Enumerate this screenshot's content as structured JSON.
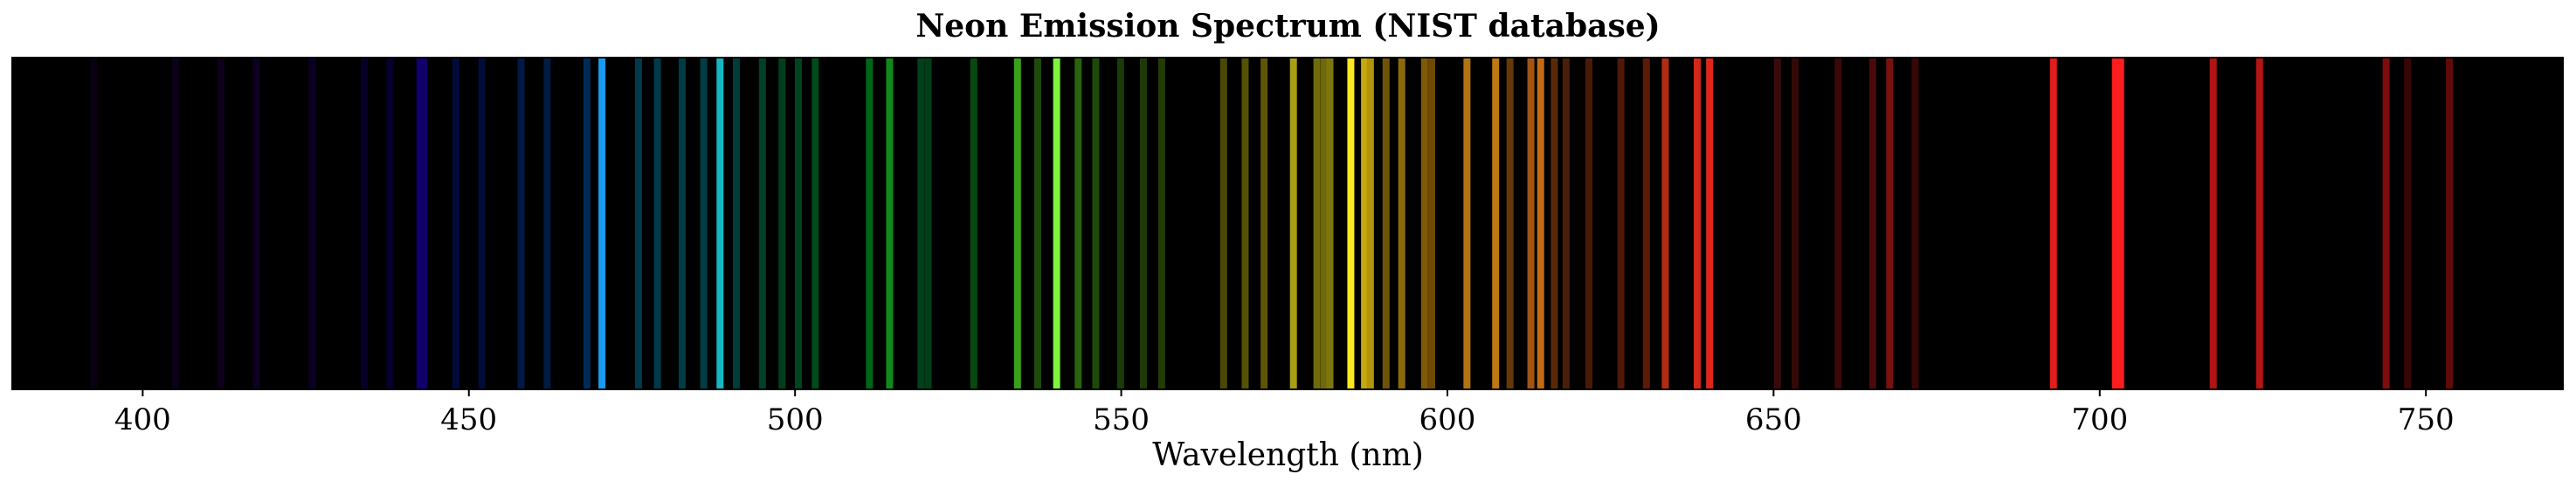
{
  "chart_data": {
    "type": "spectrum",
    "title": "Neon Emission Spectrum (NIST database)",
    "xlabel": "Wavelength (nm)",
    "ylabel": "",
    "xlim": [
      380,
      771
    ],
    "xticks": [
      400,
      450,
      500,
      550,
      600,
      650,
      700,
      750
    ],
    "grid": false,
    "legend": "none",
    "background_color": "#000000",
    "lines": [
      {
        "wavelength": 392.5,
        "color": "#0a0012"
      },
      {
        "wavelength": 405.0,
        "color": "#0b0017"
      },
      {
        "wavelength": 412.0,
        "color": "#0c001b"
      },
      {
        "wavelength": 417.4,
        "color": "#0d0020"
      },
      {
        "wavelength": 426.0,
        "color": "#0a0026"
      },
      {
        "wavelength": 434.0,
        "color": "#060029"
      },
      {
        "wavelength": 437.9,
        "color": "#05002d"
      },
      {
        "wavelength": 442.5,
        "color": "#120070"
      },
      {
        "wavelength": 443.1,
        "color": "#10006a"
      },
      {
        "wavelength": 448.0,
        "color": "#000c38"
      },
      {
        "wavelength": 452.0,
        "color": "#000c3a"
      },
      {
        "wavelength": 458.0,
        "color": "#001a45"
      },
      {
        "wavelength": 462.0,
        "color": "#001c45"
      },
      {
        "wavelength": 468.1,
        "color": "#002a55"
      },
      {
        "wavelength": 470.4,
        "color": "#1a9bef"
      },
      {
        "wavelength": 476.0,
        "color": "#003a4c"
      },
      {
        "wavelength": 478.9,
        "color": "#00394a"
      },
      {
        "wavelength": 482.7,
        "color": "#003c46"
      },
      {
        "wavelength": 486.0,
        "color": "#003e44"
      },
      {
        "wavelength": 488.5,
        "color": "#15b8c2"
      },
      {
        "wavelength": 491.0,
        "color": "#003c38"
      },
      {
        "wavelength": 495.0,
        "color": "#00402a"
      },
      {
        "wavelength": 498.0,
        "color": "#003e1e"
      },
      {
        "wavelength": 500.5,
        "color": "#00441f"
      },
      {
        "wavelength": 503.1,
        "color": "#004a1c"
      },
      {
        "wavelength": 511.4,
        "color": "#00661a"
      },
      {
        "wavelength": 514.5,
        "color": "#0f8a1a"
      },
      {
        "wavelength": 519.3,
        "color": "#00401a"
      },
      {
        "wavelength": 520.4,
        "color": "#003e18"
      },
      {
        "wavelength": 527.4,
        "color": "#064a12"
      },
      {
        "wavelength": 534.1,
        "color": "#38a21a"
      },
      {
        "wavelength": 537.2,
        "color": "#204a0a"
      },
      {
        "wavelength": 540.1,
        "color": "#7ef43e"
      },
      {
        "wavelength": 543.4,
        "color": "#28640e"
      },
      {
        "wavelength": 546.1,
        "color": "#1d4a0a"
      },
      {
        "wavelength": 549.9,
        "color": "#1a3c08"
      },
      {
        "wavelength": 553.4,
        "color": "#1f3a08"
      },
      {
        "wavelength": 556.2,
        "color": "#263c06"
      },
      {
        "wavelength": 565.7,
        "color": "#4a4806"
      },
      {
        "wavelength": 569.0,
        "color": "#555206"
      },
      {
        "wavelength": 571.9,
        "color": "#5e5506"
      },
      {
        "wavelength": 576.4,
        "color": "#a8a014"
      },
      {
        "wavelength": 580.0,
        "color": "#6e6b0a"
      },
      {
        "wavelength": 581.1,
        "color": "#6e690a"
      },
      {
        "wavelength": 582.0,
        "color": "#7d760c"
      },
      {
        "wavelength": 585.2,
        "color": "#ffe81c"
      },
      {
        "wavelength": 587.3,
        "color": "#c8a810"
      },
      {
        "wavelength": 588.2,
        "color": "#b0940c"
      },
      {
        "wavelength": 590.6,
        "color": "#6e5408"
      },
      {
        "wavelength": 593.0,
        "color": "#8a6a08"
      },
      {
        "wavelength": 596.5,
        "color": "#7e5a08"
      },
      {
        "wavelength": 597.6,
        "color": "#6e4a06"
      },
      {
        "wavelength": 603.0,
        "color": "#b27410"
      },
      {
        "wavelength": 607.4,
        "color": "#c07812"
      },
      {
        "wavelength": 609.6,
        "color": "#64380a"
      },
      {
        "wavelength": 612.8,
        "color": "#a45512"
      },
      {
        "wavelength": 614.3,
        "color": "#c26a14"
      },
      {
        "wavelength": 616.4,
        "color": "#5a2a08"
      },
      {
        "wavelength": 618.2,
        "color": "#4a1e08"
      },
      {
        "wavelength": 621.7,
        "color": "#4a1a08"
      },
      {
        "wavelength": 626.6,
        "color": "#501808"
      },
      {
        "wavelength": 630.5,
        "color": "#5c1a08"
      },
      {
        "wavelength": 633.4,
        "color": "#b22c14"
      },
      {
        "wavelength": 638.3,
        "color": "#d2281a"
      },
      {
        "wavelength": 640.2,
        "color": "#e0261a"
      },
      {
        "wavelength": 650.6,
        "color": "#3a0a0a"
      },
      {
        "wavelength": 653.3,
        "color": "#350808"
      },
      {
        "wavelength": 659.9,
        "color": "#3a0808"
      },
      {
        "wavelength": 665.2,
        "color": "#4a0a0a"
      },
      {
        "wavelength": 667.8,
        "color": "#7a1010"
      },
      {
        "wavelength": 671.7,
        "color": "#380606"
      },
      {
        "wavelength": 692.9,
        "color": "#e41c1c"
      },
      {
        "wavelength": 702.4,
        "color": "#ff1c1c"
      },
      {
        "wavelength": 703.2,
        "color": "#ff1e1e"
      },
      {
        "wavelength": 717.4,
        "color": "#b01414"
      },
      {
        "wavelength": 724.5,
        "color": "#b41414"
      },
      {
        "wavelength": 743.9,
        "color": "#7e0c0c"
      },
      {
        "wavelength": 747.2,
        "color": "#380606"
      },
      {
        "wavelength": 753.6,
        "color": "#600a0a"
      }
    ]
  }
}
